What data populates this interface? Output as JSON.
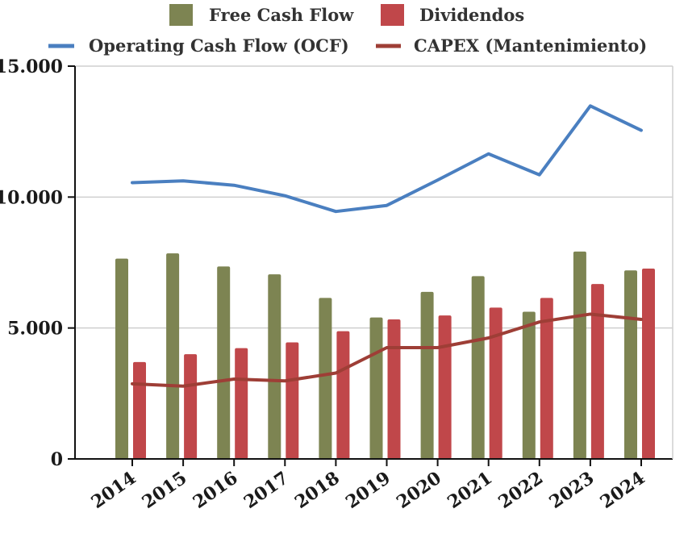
{
  "chart_data": {
    "type": "bar",
    "title": "",
    "xlabel": "",
    "ylabel": "",
    "categories": [
      "2014",
      "2015",
      "2016",
      "2017",
      "2018",
      "2019",
      "2020",
      "2021",
      "2022",
      "2023",
      "2024"
    ],
    "ylim": [
      0,
      15000
    ],
    "yticks": [
      0,
      5000,
      10000,
      15000
    ],
    "ytick_labels": [
      "0",
      "5.000",
      "10.000",
      "15.000"
    ],
    "grid": true,
    "legend_position": "top",
    "series": [
      {
        "name": "Free Cash Flow",
        "kind": "bar",
        "color": "#7d8452",
        "values": [
          7650,
          7850,
          7350,
          7050,
          6150,
          5400,
          6380,
          6980,
          5620,
          7920,
          7200
        ]
      },
      {
        "name": "Dividendos",
        "kind": "bar",
        "color": "#c0474a",
        "values": [
          3700,
          4000,
          4230,
          4450,
          4880,
          5330,
          5480,
          5780,
          6150,
          6680,
          7270
        ]
      },
      {
        "name": "Operating Cash Flow (OCF)",
        "kind": "line",
        "color": "#4a7fc0",
        "values": [
          10550,
          10620,
          10450,
          10050,
          9450,
          9680,
          10650,
          11650,
          10850,
          13480,
          12550
        ]
      },
      {
        "name": "CAPEX (Mantenimiento)",
        "kind": "line",
        "color": "#9e3e36",
        "values": [
          2870,
          2780,
          3050,
          2980,
          3280,
          4250,
          4250,
          4620,
          5230,
          5530,
          5330
        ]
      }
    ]
  }
}
